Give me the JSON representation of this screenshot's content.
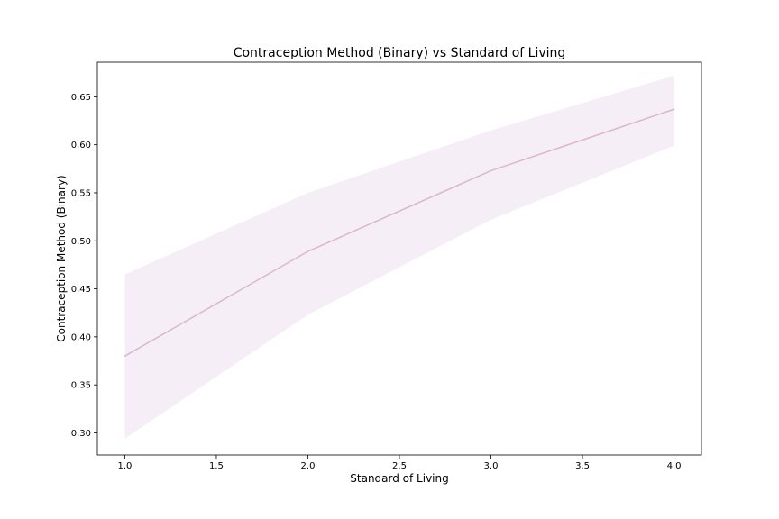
{
  "chart_data": {
    "type": "line",
    "title": "Contraception Method (Binary) vs Standard of Living",
    "xlabel": "Standard of Living",
    "ylabel": "Contraception Method (Binary)",
    "x": [
      1.0,
      2.0,
      3.0,
      4.0
    ],
    "series": [
      {
        "values": [
          0.38,
          0.489,
          0.573,
          0.637
        ],
        "ci_lower": [
          0.294,
          0.423,
          0.522,
          0.599
        ],
        "ci_upper": [
          0.465,
          0.55,
          0.615,
          0.672
        ]
      }
    ],
    "xlim": [
      0.85,
      4.15
    ],
    "ylim": [
      0.277,
      0.686
    ],
    "xticks": [
      1.0,
      1.5,
      2.0,
      2.5,
      3.0,
      3.5,
      4.0
    ],
    "xtick_labels": [
      "1.0",
      "1.5",
      "2.0",
      "2.5",
      "3.0",
      "3.5",
      "4.0"
    ],
    "yticks": [
      0.3,
      0.35,
      0.4,
      0.45,
      0.5,
      0.55,
      0.6,
      0.65
    ],
    "ytick_labels": [
      "0.30",
      "0.35",
      "0.40",
      "0.45",
      "0.50",
      "0.55",
      "0.60",
      "0.65"
    ],
    "grid": false,
    "colors": {
      "line": "#d9b8cc",
      "band": "#f5eef6",
      "axis": "#000000"
    }
  }
}
